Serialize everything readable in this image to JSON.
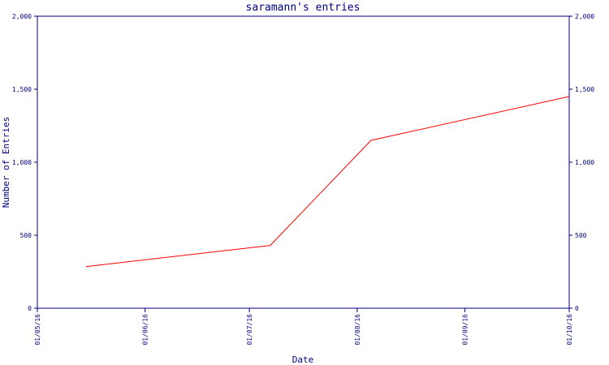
{
  "chart_data": {
    "type": "line",
    "title": "saramann's entries",
    "xlabel": "Date",
    "ylabel": "Number of Entries",
    "x_tick_labels": [
      "01/05/16",
      "01/06/16",
      "01/07/16",
      "01/08/16",
      "01/09/16",
      "01/10/16"
    ],
    "y_tick_labels": [
      "0",
      "500",
      "1,000",
      "1,500",
      "2,000"
    ],
    "y_ticks": [
      0,
      500,
      1000,
      1500,
      2000
    ],
    "ylim": [
      0,
      2000
    ],
    "xlim": [
      "2016-05-01",
      "2016-10-01"
    ],
    "y_axis_right_mirror": true,
    "grid": false,
    "colors": {
      "axis": "#000080",
      "series": "#ff0000",
      "background": "#ffffff"
    },
    "series": [
      {
        "x": [
          "2016-05-15",
          "2016-07-07",
          "2016-08-05",
          "2016-10-01"
        ],
        "y": [
          285,
          430,
          1150,
          1450
        ]
      }
    ]
  }
}
